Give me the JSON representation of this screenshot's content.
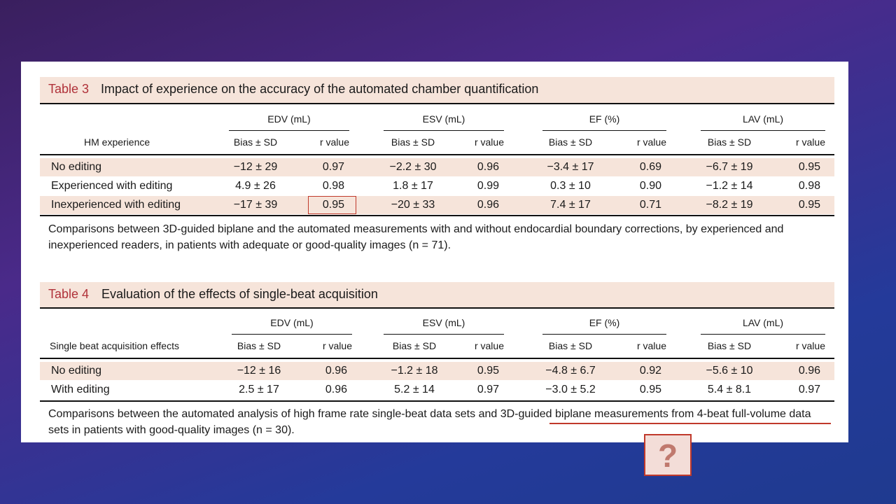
{
  "tables": [
    {
      "label": "Table 3",
      "title": "Impact of experience on the accuracy of the automated chamber quantification",
      "row_header": "HM experience",
      "groups": [
        {
          "name": "EDV (mL)",
          "columns": [
            "Bias ± SD",
            "r value"
          ]
        },
        {
          "name": "ESV (mL)",
          "columns": [
            "Bias ± SD",
            "r value"
          ]
        },
        {
          "name": "EF (%)",
          "columns": [
            "Bias ± SD",
            "r value"
          ]
        },
        {
          "name": "LAV (mL)",
          "columns": [
            "Bias ± SD",
            "r value"
          ]
        }
      ],
      "rows": [
        {
          "label": "No editing",
          "cells": [
            "−12 ± 29",
            "0.97",
            "−2.2 ± 30",
            "0.96",
            "−3.4 ± 17",
            "0.69",
            "−6.7 ± 19",
            "0.95"
          ]
        },
        {
          "label": "Experienced with editing",
          "cells": [
            "4.9 ± 26",
            "0.98",
            "1.8 ± 17",
            "0.99",
            "0.3 ± 10",
            "0.90",
            "−1.2 ± 14",
            "0.98"
          ]
        },
        {
          "label": "Inexperienced with editing",
          "cells": [
            "−17 ± 39",
            "0.95",
            "−20 ± 33",
            "0.96",
            "7.4 ± 17",
            "0.71",
            "−8.2 ± 19",
            "0.95"
          ]
        }
      ],
      "footnote": "Comparisons between 3D-guided biplane and the automated measurements with and without endocardial boundary corrections, by experienced and inexperienced readers, in patients with adequate or good-quality images (n = 71)."
    },
    {
      "label": "Table 4",
      "title": "Evaluation of the effects of single-beat acquisition",
      "row_header": "Single beat acquisition effects",
      "groups": [
        {
          "name": "EDV (mL)",
          "columns": [
            "Bias ± SD",
            "r value"
          ]
        },
        {
          "name": "ESV (mL)",
          "columns": [
            "Bias ± SD",
            "r value"
          ]
        },
        {
          "name": "EF (%)",
          "columns": [
            "Bias ± SD",
            "r value"
          ]
        },
        {
          "name": "LAV (mL)",
          "columns": [
            "Bias ± SD",
            "r value"
          ]
        }
      ],
      "rows": [
        {
          "label": "No editing",
          "cells": [
            "−12 ± 16",
            "0.96",
            "−1.2 ± 18",
            "0.95",
            "−4.8 ± 6.7",
            "0.92",
            "−5.6 ± 10",
            "0.96"
          ]
        },
        {
          "label": "With editing",
          "cells": [
            "2.5 ± 17",
            "0.96",
            "5.2 ± 14",
            "0.97",
            "−3.0 ± 5.2",
            "0.95",
            "5.4 ± 8.1",
            "0.97"
          ]
        }
      ],
      "footnote": "Comparisons between the automated analysis of high frame rate single-beat data sets and 3D-guided biplane measurements from 4-beat full-volume data sets in patients with good-quality images (n = 30)."
    }
  ],
  "question_mark": "?"
}
